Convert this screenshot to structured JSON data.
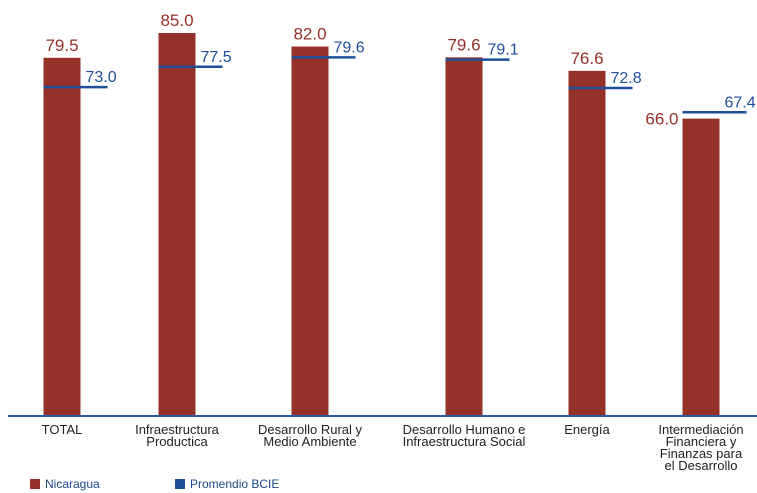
{
  "chart_data": {
    "type": "bar",
    "categories": [
      [
        "TOTAL"
      ],
      [
        "Infraestructura",
        "Productica"
      ],
      [
        "Desarrollo Rural y",
        "Medio Ambiente"
      ],
      [
        "Desarrollo Humano e",
        "Infraestructura Social"
      ],
      [
        "Energía"
      ],
      [
        "Intermediación",
        "Financiera y",
        "Finanzas para",
        "el Desarrollo"
      ]
    ],
    "series": [
      {
        "name": "Nicaragua",
        "type": "bar",
        "color": "#943128",
        "values": [
          79.5,
          85.0,
          82.0,
          79.6,
          76.6,
          66.0
        ],
        "labels": [
          "79.5",
          "85.0",
          "82.0",
          "79.6",
          "76.6",
          "66.0"
        ]
      },
      {
        "name": "Promendio BCIE",
        "type": "marker-line",
        "color": "#1f4e9a",
        "values": [
          73.0,
          77.5,
          79.6,
          79.1,
          72.8,
          67.4
        ],
        "labels": [
          "73.0",
          "77.5",
          "79.6",
          "79.1",
          "72.8",
          "67.4"
        ]
      }
    ],
    "ylim": [
      0,
      85
    ],
    "grid": false,
    "legend_position": "bottom-left"
  },
  "legend": {
    "nicaragua": "Nicaragua",
    "bcie": "Promendio BCIE",
    "nicaragua_color": "#943128",
    "bcie_color": "#1f4e9a"
  }
}
